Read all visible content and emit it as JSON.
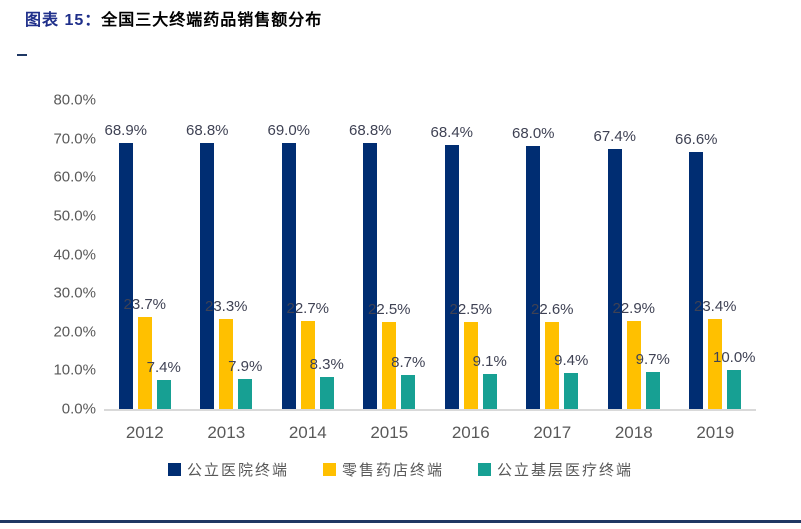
{
  "header": {
    "prefix": "图表 15：",
    "title": "全国三大终端药品销售额分布"
  },
  "colors": {
    "navy": "#002D72",
    "yellow": "#FFC000",
    "teal": "#17A093",
    "title_prefix": "#1F2F8A",
    "axis_text": "#595959",
    "data_label": "#3F4254",
    "axis_line": "#D9D9D9",
    "bottom_rule": "#1F3864"
  },
  "chart_data": {
    "type": "bar",
    "title": "全国三大终端药品销售额分布",
    "categories": [
      "2012",
      "2013",
      "2014",
      "2015",
      "2016",
      "2017",
      "2018",
      "2019"
    ],
    "series": [
      {
        "name": "公立医院终端",
        "color_key": "navy",
        "values": [
          68.9,
          68.8,
          69.0,
          68.8,
          68.4,
          68.0,
          67.4,
          66.6
        ]
      },
      {
        "name": "零售药店终端",
        "color_key": "yellow",
        "values": [
          23.7,
          23.3,
          22.7,
          22.5,
          22.5,
          22.6,
          22.9,
          23.4
        ]
      },
      {
        "name": "公立基层医疗终端",
        "color_key": "teal",
        "values": [
          7.4,
          7.9,
          8.3,
          8.7,
          9.1,
          9.4,
          9.7,
          10.0
        ]
      }
    ],
    "y_ticks": [
      "80.0%",
      "70.0%",
      "60.0%",
      "50.0%",
      "40.0%",
      "30.0%",
      "20.0%",
      "10.0%",
      "0.0%"
    ],
    "ylim": [
      0,
      80
    ],
    "data_labels": true,
    "data_label_format": "one_decimal_percent",
    "grid": false,
    "legend_position": "bottom"
  }
}
